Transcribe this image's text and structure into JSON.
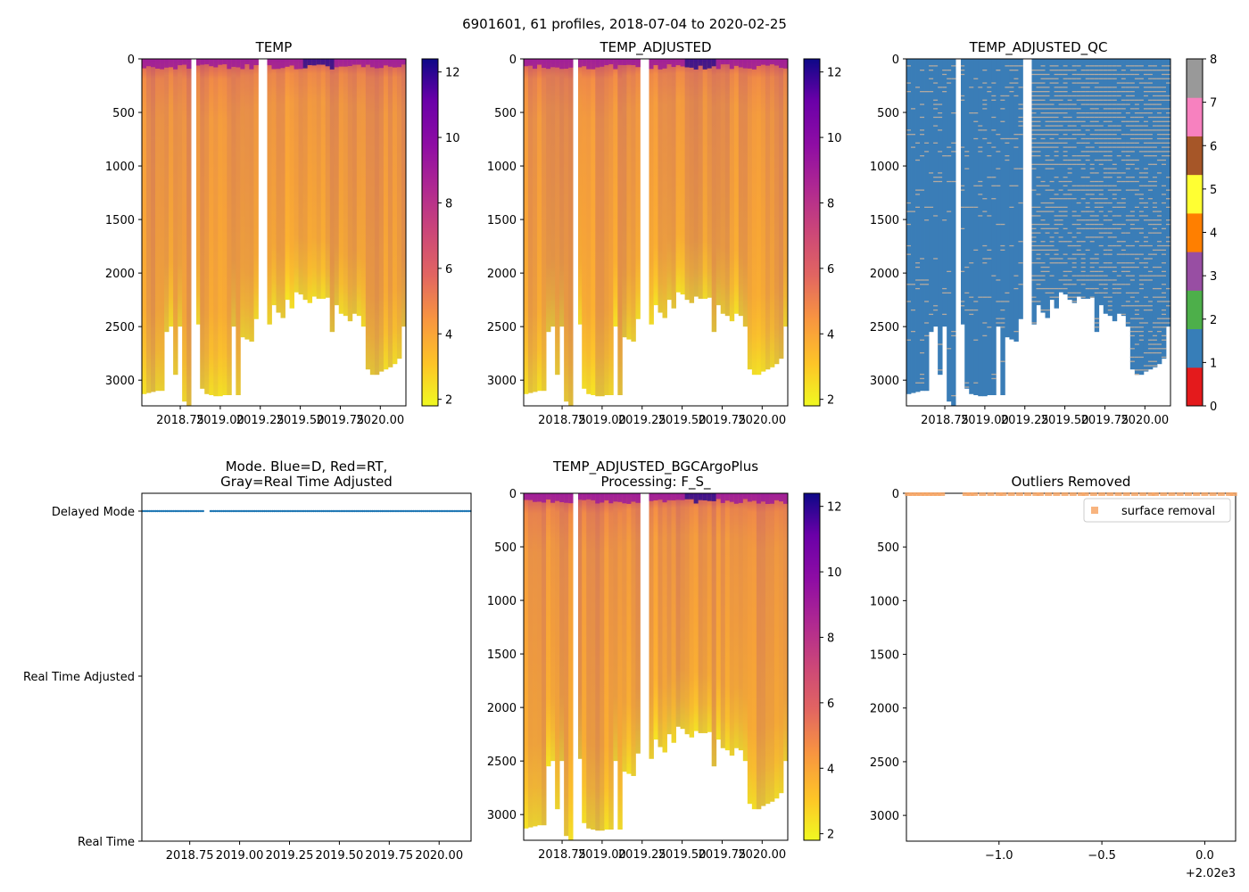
{
  "figure_title": "6901601, 61 profiles, 2018-07-04 to 2020-02-25",
  "chart_data": [
    {
      "id": "temp",
      "type": "heatmap",
      "title": "TEMP",
      "x_range": [
        2018.51,
        2020.16
      ],
      "x_ticks": [
        2018.75,
        2019.0,
        2019.25,
        2019.5,
        2019.75,
        2020.0
      ],
      "x_tick_labels": [
        "2018.75",
        "2019.00",
        "2019.25",
        "2019.50",
        "2019.75",
        "2020.00"
      ],
      "y_range": [
        3240,
        0
      ],
      "y_ticks": [
        0,
        500,
        1000,
        1500,
        2000,
        2500,
        3000
      ],
      "y_tick_labels": [
        "0",
        "500",
        "1000",
        "1500",
        "2000",
        "2500",
        "3000"
      ],
      "colorbar": {
        "colormap": "plasma_r",
        "range": [
          1.8,
          12.4
        ],
        "ticks": [
          2,
          4,
          6,
          8,
          10,
          12
        ],
        "tick_labels": [
          "2",
          "4",
          "6",
          "8",
          "10",
          "12"
        ]
      },
      "gaps": [
        [
          2018.82,
          2018.85
        ],
        [
          2019.25,
          2019.28
        ]
      ],
      "max_depth": [
        3130,
        3120,
        3110,
        3100,
        3100,
        2550,
        2500,
        2950,
        2500,
        3200,
        3240,
        2450,
        2480,
        3080,
        3130,
        3140,
        3150,
        3150,
        3140,
        3140,
        2500,
        3140,
        2600,
        2620,
        2640,
        2430,
        2510,
        2450,
        2480,
        2300,
        2370,
        2420,
        2250,
        2330,
        2180,
        2200,
        2250,
        2280,
        2220,
        2240,
        2240,
        2230,
        2550,
        2300,
        2380,
        2400,
        2450,
        2380,
        2400,
        2500,
        2900,
        2950,
        2950,
        2920,
        2900,
        2880,
        2850,
        2800,
        2500
      ]
    },
    {
      "id": "temp-adjusted",
      "type": "heatmap",
      "title": "TEMP_ADJUSTED",
      "x_range": [
        2018.51,
        2020.16
      ],
      "x_ticks": [
        2018.75,
        2019.0,
        2019.25,
        2019.5,
        2019.75,
        2020.0
      ],
      "x_tick_labels": [
        "2018.75",
        "2019.00",
        "2019.25",
        "2019.50",
        "2019.75",
        "2020.00"
      ],
      "y_range": [
        3240,
        0
      ],
      "y_ticks": [
        0,
        500,
        1000,
        1500,
        2000,
        2500,
        3000
      ],
      "y_tick_labels": [
        "0",
        "500",
        "1000",
        "1500",
        "2000",
        "2500",
        "3000"
      ],
      "colorbar": {
        "colormap": "plasma_r",
        "range": [
          1.8,
          12.4
        ],
        "ticks": [
          2,
          4,
          6,
          8,
          10,
          12
        ],
        "tick_labels": [
          "2",
          "4",
          "6",
          "8",
          "10",
          "12"
        ]
      },
      "gaps": [
        [
          2018.82,
          2018.85
        ],
        [
          2019.25,
          2019.28
        ]
      ],
      "max_depth": [
        3130,
        3120,
        3110,
        3100,
        3100,
        2550,
        2500,
        2950,
        2500,
        3200,
        3240,
        2450,
        2480,
        3080,
        3130,
        3140,
        3150,
        3150,
        3140,
        3140,
        2500,
        3140,
        2600,
        2620,
        2640,
        2430,
        2510,
        2450,
        2480,
        2300,
        2370,
        2420,
        2250,
        2330,
        2180,
        2200,
        2250,
        2280,
        2220,
        2240,
        2240,
        2230,
        2550,
        2300,
        2380,
        2400,
        2450,
        2380,
        2400,
        2500,
        2900,
        2950,
        2950,
        2920,
        2900,
        2880,
        2850,
        2800,
        2500
      ]
    },
    {
      "id": "temp-adjusted-qc",
      "type": "heatmap",
      "title": "TEMP_ADJUSTED_QC",
      "x_range": [
        2018.51,
        2020.16
      ],
      "x_ticks": [
        2018.75,
        2019.0,
        2019.25,
        2019.5,
        2019.75,
        2020.0
      ],
      "x_tick_labels": [
        "2018.75",
        "2019.00",
        "2019.25",
        "2019.50",
        "2019.75",
        "2020.00"
      ],
      "y_range": [
        3240,
        0
      ],
      "y_ticks": [
        0,
        500,
        1000,
        1500,
        2000,
        2500,
        3000
      ],
      "y_tick_labels": [
        "0",
        "500",
        "1000",
        "1500",
        "2000",
        "2500",
        "3000"
      ],
      "fill_color": "#3a7db7",
      "speckle_color": "#b4aaa0",
      "colorbar": {
        "colormap": "qc_categorical",
        "range": [
          0,
          8
        ],
        "colors": [
          "#e41a1c",
          "#377eb8",
          "#4daf4a",
          "#984ea3",
          "#ff7f00",
          "#ffff33",
          "#a65628",
          "#f781bf",
          "#999999"
        ],
        "ticks": [
          0,
          1,
          2,
          3,
          4,
          5,
          6,
          7,
          8
        ],
        "tick_labels": [
          "0",
          "1",
          "2",
          "3",
          "4",
          "5",
          "6",
          "7",
          "8"
        ]
      },
      "gaps": [
        [
          2018.82,
          2018.85
        ],
        [
          2019.25,
          2019.28
        ]
      ],
      "max_depth": [
        3130,
        3120,
        3110,
        3100,
        3100,
        2550,
        2500,
        2950,
        2500,
        3200,
        3240,
        2450,
        2480,
        3080,
        3130,
        3140,
        3150,
        3150,
        3140,
        3140,
        2500,
        3140,
        2600,
        2620,
        2640,
        2430,
        2510,
        2450,
        2480,
        2300,
        2370,
        2420,
        2250,
        2330,
        2180,
        2200,
        2250,
        2280,
        2220,
        2240,
        2240,
        2230,
        2550,
        2300,
        2380,
        2400,
        2450,
        2380,
        2400,
        2500,
        2900,
        2950,
        2950,
        2920,
        2900,
        2880,
        2850,
        2800,
        2500
      ]
    },
    {
      "id": "mode",
      "type": "scatter",
      "title": "Mode. Blue=D, Red=RT,\nGray=Real Time Adjusted",
      "title_lines": [
        "Mode. Blue=D, Red=RT,",
        "Gray=Real Time Adjusted"
      ],
      "x_range": [
        2018.51,
        2020.16
      ],
      "x_ticks": [
        2018.75,
        2019.0,
        2019.25,
        2019.5,
        2019.75,
        2020.0
      ],
      "x_tick_labels": [
        "2018.75",
        "2019.00",
        "2019.25",
        "2019.50",
        "2019.75",
        "2020.00"
      ],
      "y_categories": [
        "Real Time",
        "Real Time Adjusted",
        "Delayed Mode"
      ],
      "series": [
        {
          "name": "Delayed Mode",
          "color": "#1f77b4",
          "y": "Delayed Mode",
          "x_segments": [
            [
              2018.51,
              2018.82
            ],
            [
              2018.85,
              2020.16
            ]
          ],
          "spacing": 0.0082
        }
      ]
    },
    {
      "id": "bgc",
      "type": "heatmap",
      "title": "TEMP_ADJUSTED_BGCArgoPlus\nProcessing: F_S_",
      "title_lines": [
        "TEMP_ADJUSTED_BGCArgoPlus",
        "Processing: F_S_"
      ],
      "x_range": [
        2018.51,
        2020.16
      ],
      "x_ticks": [
        2018.75,
        2019.0,
        2019.25,
        2019.5,
        2019.75,
        2020.0
      ],
      "x_tick_labels": [
        "2018.75",
        "2019.00",
        "2019.25",
        "2019.50",
        "2019.75",
        "2020.00"
      ],
      "y_range": [
        3240,
        0
      ],
      "y_ticks": [
        0,
        500,
        1000,
        1500,
        2000,
        2500,
        3000
      ],
      "y_tick_labels": [
        "0",
        "500",
        "1000",
        "1500",
        "2000",
        "2500",
        "3000"
      ],
      "colorbar": {
        "colormap": "plasma_r",
        "range": [
          1.8,
          12.4
        ],
        "ticks": [
          2,
          4,
          6,
          8,
          10,
          12
        ],
        "tick_labels": [
          "2",
          "4",
          "6",
          "8",
          "10",
          "12"
        ]
      },
      "gaps": [
        [
          2018.82,
          2018.85
        ],
        [
          2019.25,
          2019.28
        ]
      ],
      "max_depth": [
        3130,
        3120,
        3110,
        3100,
        3100,
        2550,
        2500,
        2950,
        2500,
        3200,
        3240,
        2450,
        2480,
        3080,
        3130,
        3140,
        3150,
        3150,
        3140,
        3140,
        2500,
        3140,
        2600,
        2620,
        2640,
        2430,
        2510,
        2450,
        2480,
        2300,
        2370,
        2420,
        2250,
        2330,
        2180,
        2200,
        2250,
        2280,
        2220,
        2240,
        2240,
        2230,
        2550,
        2300,
        2380,
        2400,
        2450,
        2380,
        2400,
        2500,
        2900,
        2950,
        2950,
        2920,
        2900,
        2880,
        2850,
        2800,
        2500
      ]
    },
    {
      "id": "outliers",
      "type": "scatter",
      "title": "Outliers Removed",
      "x_range": [
        -1.45,
        0.15
      ],
      "x_ticks": [
        -1.0,
        -0.5,
        0.0
      ],
      "x_tick_labels": [
        "−1.0",
        "−0.5",
        "0.0"
      ],
      "x_offset_label": "+2.02e3",
      "y_range": [
        3240,
        0
      ],
      "y_ticks": [
        0,
        500,
        1000,
        1500,
        2000,
        2500,
        3000
      ],
      "y_tick_labels": [
        "0",
        "500",
        "1000",
        "1500",
        "2000",
        "2500",
        "3000"
      ],
      "legend": {
        "label": "surface removal",
        "color": "#f7a767",
        "location": "upper right"
      },
      "series": [
        {
          "name": "surface removal",
          "color": "#f7a767",
          "depth": 0,
          "x": [
            -1.44,
            -1.42,
            -1.4,
            -1.38,
            -1.36,
            -1.34,
            -1.32,
            -1.3,
            -1.28,
            -1.16,
            -1.14,
            -1.12,
            -1.08,
            -1.04,
            -1.0,
            -0.98,
            -0.94,
            -0.9,
            -0.86,
            -0.82,
            -0.8,
            -0.76,
            -0.72,
            -0.68,
            -0.64,
            -0.6,
            -0.58,
            -0.54,
            -0.5,
            -0.46,
            -0.42,
            -0.38,
            -0.34,
            -0.3,
            -0.26,
            -0.24,
            -0.2,
            -0.16,
            -0.12,
            -0.08,
            -0.04,
            0.0,
            0.04,
            0.08,
            0.12,
            0.14
          ]
        }
      ]
    }
  ]
}
